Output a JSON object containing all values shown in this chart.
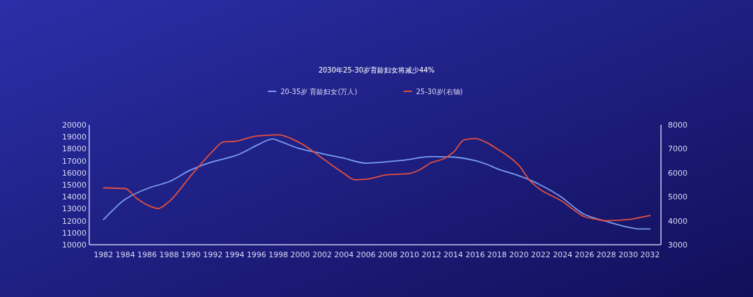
{
  "chart_data": {
    "type": "line",
    "title": "2030年25-30岁育龄妇女将减少44%",
    "legend": "top",
    "xlim": [
      1980.7,
      2033
    ],
    "xticks": [
      1982,
      1984,
      1986,
      1988,
      1990,
      1992,
      1994,
      1996,
      1998,
      2000,
      2002,
      2004,
      2006,
      2008,
      2010,
      2012,
      2014,
      2016,
      2018,
      2020,
      2022,
      2024,
      2026,
      2028,
      2030,
      2032
    ],
    "ylim": [
      10000,
      20000
    ],
    "yticks": [
      10000,
      11000,
      12000,
      13000,
      14000,
      15000,
      16000,
      17000,
      18000,
      19000,
      20000
    ],
    "y2lim": [
      3000,
      8000
    ],
    "y2ticks": [
      3000,
      4000,
      5000,
      6000,
      7000,
      8000
    ],
    "series": [
      {
        "name": "20-35岁 育龄妇女(万人)",
        "color": "#7b9cf0",
        "x": [
          1982,
          1984,
          1986,
          1988,
          1990,
          1992,
          1994,
          1995,
          1996,
          1997.5,
          1998,
          2000,
          2002,
          2004,
          2006,
          2008,
          2010,
          2011,
          2012,
          2014,
          2016,
          2017,
          2018,
          2020,
          2021,
          2022,
          2024,
          2025,
          2026,
          2028,
          2030,
          2031,
          2032
        ],
        "values": [
          12100,
          13800,
          14680,
          15260,
          16240,
          16920,
          17400,
          17800,
          18280,
          18810,
          18670,
          18000,
          17600,
          17210,
          16800,
          16920,
          17110,
          17270,
          17350,
          17310,
          17020,
          16730,
          16340,
          15750,
          15400,
          14970,
          13900,
          13160,
          12530,
          11950,
          11460,
          11310,
          11310
        ]
      },
      {
        "name": "25-30岁(右轴)",
        "color": "#e0503f",
        "axis": "y2",
        "x": [
          1982,
          1984,
          1985,
          1986,
          1987,
          1988,
          1990,
          1992,
          1993,
          1994,
          1996,
          1998,
          2000,
          2002,
          2004,
          2005,
          2006,
          2008,
          2010,
          2011,
          2012,
          2013,
          2014,
          2015,
          2016,
          2017,
          2018,
          2019,
          2020,
          2021,
          2022,
          2024,
          2025,
          2026,
          2027,
          2028,
          2030,
          2032
        ],
        "values": [
          5370,
          5340,
          4950,
          4660,
          4510,
          4800,
          5880,
          6900,
          7290,
          7310,
          7530,
          7580,
          7240,
          6610,
          5970,
          5710,
          5730,
          5920,
          5970,
          6140,
          6430,
          6560,
          6850,
          7370,
          7430,
          7270,
          7000,
          6700,
          6310,
          5680,
          5290,
          4800,
          4460,
          4170,
          4070,
          4000,
          4050,
          4220
        ]
      }
    ]
  }
}
